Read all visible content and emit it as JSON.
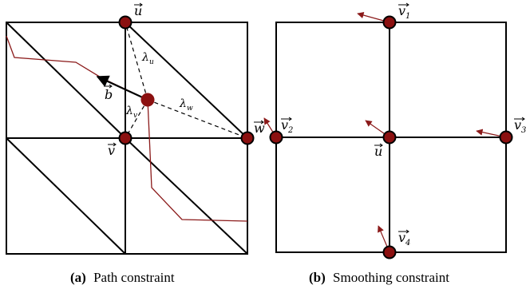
{
  "panels": [
    {
      "tag": "(a)",
      "caption": "Path constraint",
      "labels": {
        "u": "u",
        "v": "v",
        "w": "w",
        "b": "b",
        "lambda_u": "λ",
        "lambda_u_sub": "u",
        "lambda_v": "λ",
        "lambda_v_sub": "v",
        "lambda_w": "λ",
        "lambda_w_sub": "w"
      }
    },
    {
      "tag": "(b)",
      "caption": "Smoothing constraint",
      "labels": {
        "u": "u",
        "v1": "v",
        "v1_sub": "1",
        "v2": "v",
        "v2_sub": "2",
        "v3": "v",
        "v3_sub": "3",
        "v4": "v",
        "v4_sub": "4"
      }
    }
  ],
  "colors": {
    "edge": "#000000",
    "node": "#000000",
    "node_highlight": "#8b1010",
    "path": "#8b1a1a"
  }
}
